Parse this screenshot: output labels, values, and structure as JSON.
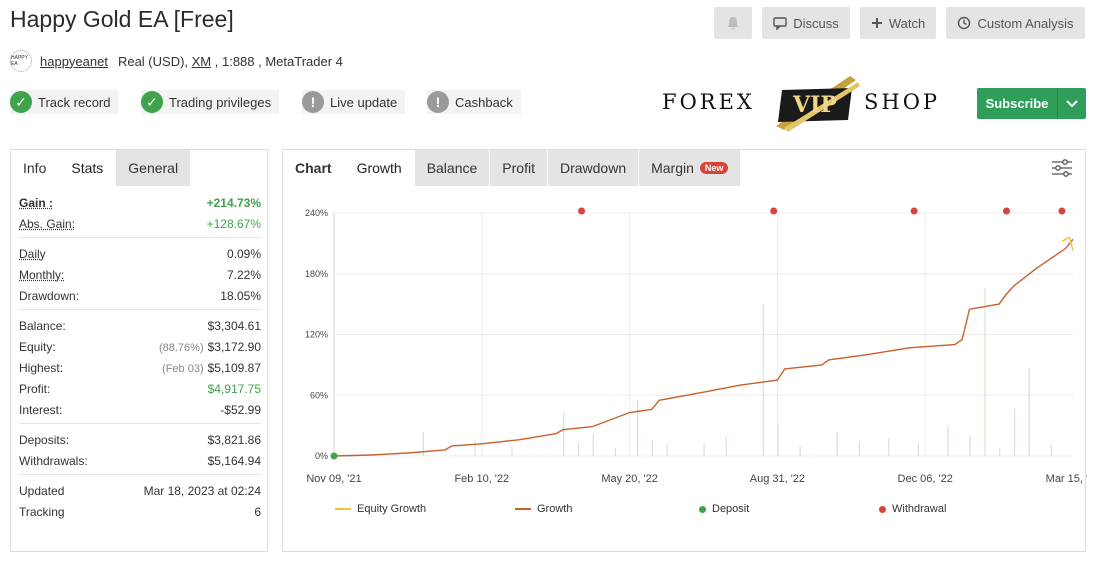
{
  "page": {
    "title": "Happy Gold EA [Free]"
  },
  "actions": {
    "discuss": "Discuss",
    "watch": "Watch",
    "custom_analysis": "Custom Analysis",
    "subscribe": "Subscribe"
  },
  "account": {
    "avatar_text": "HAPPY EA",
    "user": "happyeanet",
    "type": "Real (USD), ",
    "broker": "XM",
    "details": " , 1:888 , MetaTrader 4"
  },
  "badges": [
    {
      "label": "Track record",
      "status": "verified"
    },
    {
      "label": "Trading privileges",
      "status": "verified"
    },
    {
      "label": "Live update",
      "status": "warning"
    },
    {
      "label": "Cashback",
      "status": "warning"
    }
  ],
  "logo": {
    "left": "FOREX",
    "middle": "VIP",
    "right": "SHOP"
  },
  "left_tabs": [
    "Info",
    "Stats",
    "General"
  ],
  "stats": {
    "gain": {
      "label": "Gain :",
      "value": "+214.73%"
    },
    "abs_gain": {
      "label": "Abs. Gain:",
      "value": "+128.67%"
    },
    "daily": {
      "label": "Daily",
      "value": "0.09%"
    },
    "monthly": {
      "label": "Monthly:",
      "value": "7.22%"
    },
    "drawdown": {
      "label": "Drawdown:",
      "value": "18.05%"
    },
    "balance": {
      "label": "Balance:",
      "value": "$3,304.61"
    },
    "equity": {
      "label": "Equity:",
      "note": "(88.76%)",
      "value": "$3,172.90"
    },
    "highest": {
      "label": "Highest:",
      "note": "(Feb 03)",
      "value": "$5,109.87"
    },
    "profit": {
      "label": "Profit:",
      "value": "$4,917.75"
    },
    "interest": {
      "label": "Interest:",
      "value": "-$52.99"
    },
    "deposits": {
      "label": "Deposits:",
      "value": "$3,821.86"
    },
    "withdrawals": {
      "label": "Withdrawals:",
      "value": "$5,164.94"
    },
    "updated": {
      "label": "Updated",
      "value": "Mar 18, 2023 at 02:24"
    },
    "tracking": {
      "label": "Tracking",
      "value": "6"
    }
  },
  "right_tabs": {
    "chart": "Chart",
    "growth": "Growth",
    "balance": "Balance",
    "profit": "Profit",
    "drawdown": "Drawdown",
    "margin": "Margin",
    "new_badge": "New"
  },
  "colors": {
    "growth": "#c8602c",
    "equity": "#f0c43c",
    "deposit": "#3ea34a",
    "withdrawal": "#d9443a",
    "volume": "#cfe8cc"
  },
  "chart_data": {
    "type": "line",
    "y_ticks": [
      "0%",
      "60%",
      "120%",
      "180%",
      "240%"
    ],
    "x_ticks": [
      "Nov 09, '21",
      "Feb 10, '22",
      "May 20, '22",
      "Aug 31, '22",
      "Dec 06, '22",
      "Mar 15, '23"
    ],
    "ylim": [
      0,
      240
    ],
    "grid": true,
    "legend_placement": "bottom",
    "legend": [
      "Equity Growth",
      "Growth",
      "Deposit",
      "Withdrawal"
    ],
    "series": [
      {
        "name": "Growth",
        "x": [
          0,
          0.05,
          0.1,
          0.15,
          0.16,
          0.2,
          0.25,
          0.3,
          0.31,
          0.35,
          0.4,
          0.43,
          0.44,
          0.5,
          0.55,
          0.6,
          0.61,
          0.66,
          0.67,
          0.72,
          0.78,
          0.84,
          0.85,
          0.86,
          0.9,
          0.91,
          0.92,
          0.95,
          0.96,
          0.99,
          1.0
        ],
        "y": [
          0,
          1,
          3,
          6,
          10,
          12,
          16,
          22,
          26,
          29,
          43,
          46,
          55,
          63,
          70,
          75,
          86,
          90,
          95,
          100,
          107,
          110,
          115,
          145,
          150,
          160,
          168,
          185,
          190,
          205,
          214
        ]
      },
      {
        "name": "Equity Growth",
        "x": [
          0.985,
          0.99,
          0.995,
          1.0
        ],
        "y": [
          212,
          214,
          216,
          203
        ]
      }
    ],
    "deposits": [
      {
        "x": 0,
        "y": 0
      }
    ],
    "withdrawals": [
      {
        "x": 0.335,
        "y": 242
      },
      {
        "x": 0.595,
        "y": 242
      },
      {
        "x": 0.785,
        "y": 242
      },
      {
        "x": 0.91,
        "y": 242
      },
      {
        "x": 0.985,
        "y": 242
      }
    ]
  }
}
